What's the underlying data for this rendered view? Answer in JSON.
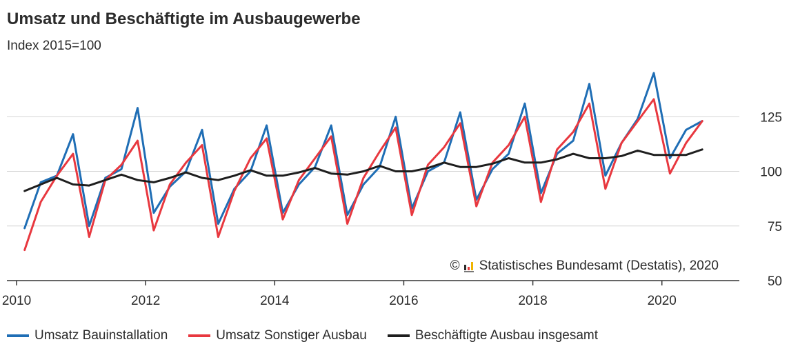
{
  "chart_data": {
    "type": "line",
    "title": "Umsatz und Beschäftigte im Ausbaugewerbe",
    "subtitle": "Index 2015=100",
    "source": "Statistisches Bundesamt (Destatis), 2020",
    "copyright_symbol": "©",
    "xlim": [
      2009.85,
      2021.2
    ],
    "ylim": [
      50,
      150
    ],
    "x_ticks": [
      2010,
      2012,
      2014,
      2016,
      2018,
      2020
    ],
    "x_tick_labels": [
      "2010",
      "2012",
      "2014",
      "2016",
      "2018",
      "2020"
    ],
    "y_ticks": [
      50,
      75,
      100,
      125
    ],
    "y_tick_labels": [
      "50",
      "75",
      "100",
      "125"
    ],
    "grid": "horizontal",
    "legend_position": "bottom",
    "x": [
      2010.125,
      2010.375,
      2010.625,
      2010.875,
      2011.125,
      2011.375,
      2011.625,
      2011.875,
      2012.125,
      2012.375,
      2012.625,
      2012.875,
      2013.125,
      2013.375,
      2013.625,
      2013.875,
      2014.125,
      2014.375,
      2014.625,
      2014.875,
      2015.125,
      2015.375,
      2015.625,
      2015.875,
      2016.125,
      2016.375,
      2016.625,
      2016.875,
      2017.125,
      2017.375,
      2017.625,
      2017.875,
      2018.125,
      2018.375,
      2018.625,
      2018.875,
      2019.125,
      2019.375,
      2019.625,
      2019.875,
      2020.125,
      2020.375,
      2020.625
    ],
    "series": [
      {
        "name": "Umsatz Bauinstallation",
        "color": "#1f6eb5",
        "values": [
          74,
          95,
          98,
          117,
          75,
          97,
          101,
          129,
          81,
          93,
          100,
          119,
          76,
          92,
          100,
          121,
          81,
          94,
          102,
          121,
          80,
          94,
          102,
          125,
          83,
          100,
          104,
          127,
          87,
          101,
          108,
          131,
          90,
          108,
          114,
          140,
          98,
          113,
          124,
          145,
          106,
          119,
          123
        ]
      },
      {
        "name": "Umsatz Sonstiger Ausbau",
        "color": "#e8383f",
        "values": [
          64,
          86,
          98,
          108,
          70,
          96,
          103,
          114,
          73,
          94,
          104,
          112,
          70,
          91,
          106,
          115,
          78,
          96,
          106,
          116,
          76,
          97,
          109,
          120,
          80,
          103,
          111,
          122,
          84,
          104,
          112,
          125,
          86,
          110,
          118,
          131,
          92,
          113,
          123,
          133,
          99,
          113,
          123
        ]
      },
      {
        "name": "Beschäftigte Ausbau insgesamt",
        "color": "#1e1e1e",
        "values": [
          91,
          94,
          97,
          94,
          93.5,
          96,
          98.5,
          96,
          95,
          97,
          99.5,
          97,
          96,
          98,
          100.5,
          98,
          98,
          99.5,
          101.5,
          99,
          98.5,
          100,
          102.5,
          100,
          100,
          101.5,
          104,
          102,
          102,
          103.5,
          106,
          104,
          104,
          105.5,
          108,
          106,
          106,
          107,
          109.5,
          107.5,
          107.5,
          107.5,
          110
        ]
      }
    ]
  }
}
